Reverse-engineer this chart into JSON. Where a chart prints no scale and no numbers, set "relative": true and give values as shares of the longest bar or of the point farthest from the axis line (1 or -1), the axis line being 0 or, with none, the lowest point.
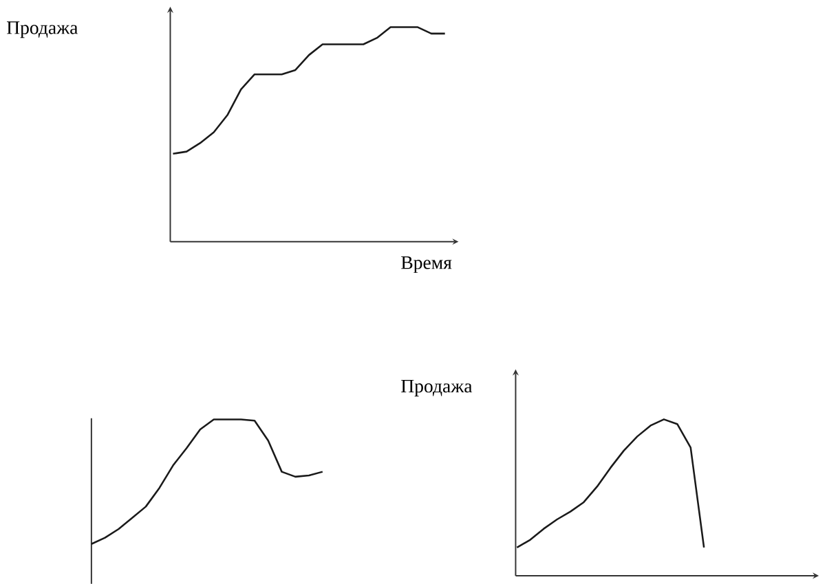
{
  "chart_data": [
    {
      "type": "line",
      "ylabel": "Продажа",
      "xlabel": "Время",
      "relative": true,
      "color": "#1a1a1a",
      "categories": [
        null,
        null,
        null,
        null,
        null,
        null,
        null,
        null,
        null,
        null,
        null,
        null,
        null,
        null,
        null,
        null,
        null,
        null,
        null,
        null,
        null
      ],
      "values": [
        0.41,
        0.42,
        0.46,
        0.51,
        0.59,
        0.71,
        0.78,
        0.78,
        0.78,
        0.8,
        0.87,
        0.92,
        0.92,
        0.92,
        0.92,
        0.95,
        1,
        1,
        1,
        0.97,
        0.97
      ]
    },
    {
      "type": "line",
      "relative": true,
      "color": "#1a1a1a",
      "categories": [
        null,
        null,
        null,
        null,
        null,
        null,
        null,
        null,
        null,
        null,
        null,
        null,
        null,
        null,
        null,
        null,
        null,
        null
      ],
      "values": [
        0,
        0.05,
        0.12,
        0.21,
        0.3,
        0.45,
        0.63,
        0.77,
        0.92,
        1,
        1,
        1,
        0.99,
        0.83,
        0.58,
        0.54,
        0.55,
        0.58
      ]
    },
    {
      "type": "line",
      "ylabel": "Продажа",
      "relative": true,
      "color": "#1a1a1a",
      "categories": [
        null,
        null,
        null,
        null,
        null,
        null,
        null,
        null,
        null,
        null,
        null,
        null,
        null,
        null,
        null
      ],
      "values": [
        0.18,
        0.23,
        0.3,
        0.36,
        0.41,
        0.47,
        0.57,
        0.69,
        0.8,
        0.89,
        0.96,
        1,
        0.97,
        0.82,
        0.18
      ]
    }
  ]
}
